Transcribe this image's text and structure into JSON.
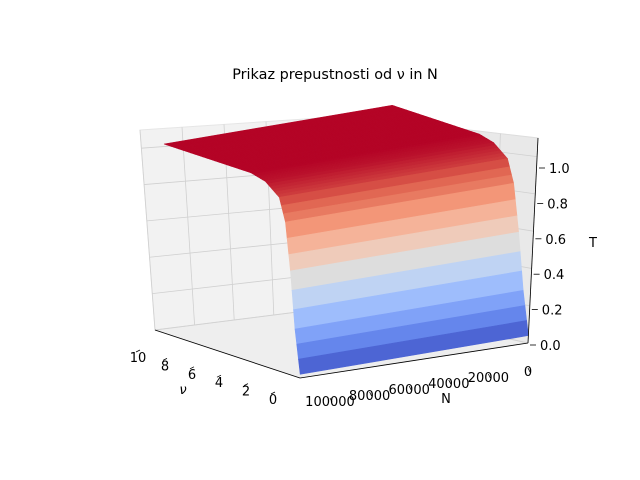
{
  "chart_data": {
    "type": "surface3d",
    "title": "Prikaz prepustnosti od ν in N",
    "xlabel": "ν",
    "ylabel": "N",
    "zlabel": "T",
    "x_ticks": [
      "10",
      "8",
      "6",
      "4",
      "2",
      "0"
    ],
    "y_ticks": [
      "100000",
      "80000",
      "60000",
      "40000",
      "20000",
      "0"
    ],
    "z_ticks": [
      "0.0",
      "0.2",
      "0.4",
      "0.6",
      "0.8",
      "1.0"
    ],
    "xlim": [
      0,
      10
    ],
    "ylim": [
      0,
      100000
    ],
    "zlim": [
      0,
      1.1
    ],
    "colormap": "coolwarm",
    "grid": true,
    "surface": {
      "description_values": "T rises from ~0 near ν=0 to ~1 for ν above ~2; nearly constant along N, with noisy spikes near N=0",
      "nu_samples": [
        0,
        0.5,
        1,
        1.5,
        2,
        3,
        4,
        6,
        8,
        10
      ],
      "T_profile": [
        0.02,
        0.25,
        0.55,
        0.8,
        0.92,
        0.98,
        1.0,
        1.0,
        1.0,
        1.0
      ]
    }
  }
}
